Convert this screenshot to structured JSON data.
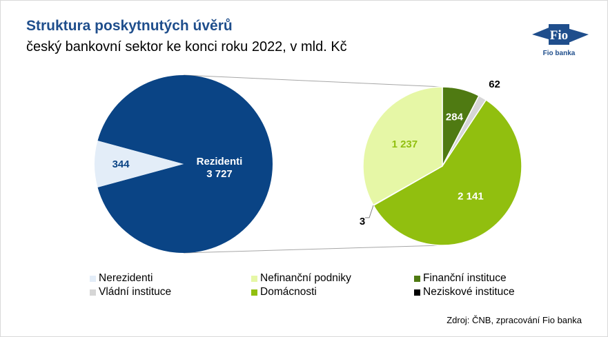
{
  "header": {
    "title": "Struktura poskytnutých úvěrů",
    "subtitle": "český bankovní sektor ke konci roku 2022, v mld. Kč"
  },
  "logo": {
    "brand": "Fio",
    "caption": "Fio banka"
  },
  "colors": {
    "brand_blue": "#1f4e8c",
    "rezidenti": "#0a4485",
    "nerezidenti": "#e3edf8",
    "nefinancni": "#e6f7a6",
    "financni": "#4f7a12",
    "vladni": "#d6d6d6",
    "domacnosti": "#91bf0f",
    "neziskove": "#000000"
  },
  "chart_data": [
    {
      "type": "pie",
      "title": "",
      "slices": [
        {
          "name": "Nerezidenti",
          "label": "344",
          "value": 344,
          "color": "#e3edf8"
        },
        {
          "name": "Rezidenti",
          "label": "Rezidenti\n3 727",
          "value": 3727,
          "color": "#0a4485"
        }
      ]
    },
    {
      "type": "pie",
      "title": "",
      "slices": [
        {
          "name": "Finanční instituce",
          "label": "284",
          "value": 284,
          "color": "#4f7a12"
        },
        {
          "name": "Vládní instituce",
          "label": "62",
          "value": 62,
          "color": "#d6d6d6"
        },
        {
          "name": "Domácnosti",
          "label": "2 141",
          "value": 2141,
          "color": "#91bf0f"
        },
        {
          "name": "Neziskové instituce",
          "label": "3",
          "value": 3,
          "color": "#000000"
        },
        {
          "name": "Nefinanční podniky",
          "label": "1 237",
          "value": 1237,
          "color": "#e6f7a6"
        }
      ]
    }
  ],
  "legend": [
    {
      "label": "Nerezidenti",
      "color": "#e3edf8"
    },
    {
      "label": "Nefinanční podniky",
      "color": "#e6f7a6"
    },
    {
      "label": "Finanční instituce",
      "color": "#4f7a12"
    },
    {
      "label": "Vládní instituce",
      "color": "#d6d6d6"
    },
    {
      "label": "Domácnosti",
      "color": "#91bf0f"
    },
    {
      "label": "Neziskové instituce",
      "color": "#000000"
    }
  ],
  "source": "Zdroj: ČNB, zpracování Fio banka"
}
